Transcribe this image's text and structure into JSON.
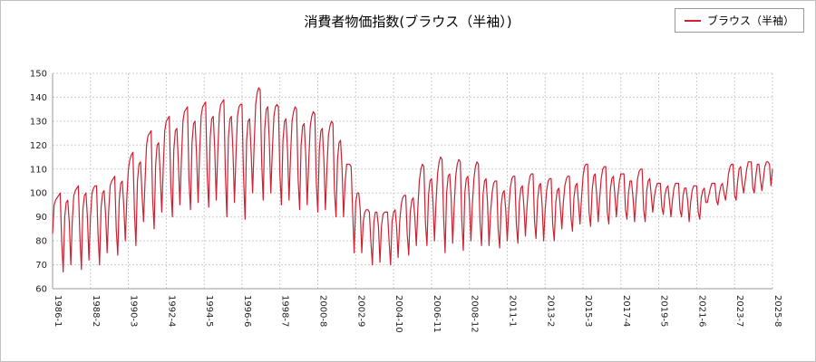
{
  "page": {
    "title": "消費者物価指数(ブラウス（半袖）)",
    "legend": {
      "label": "ブラウス（半袖）",
      "line_color": "#cc2233"
    }
  },
  "chart_data": {
    "type": "line",
    "title": "消費者物価指数(ブラウス（半袖）)",
    "xlabel": "",
    "ylabel": "",
    "ylim": [
      60,
      150
    ],
    "y_ticks": [
      60,
      70,
      80,
      90,
      100,
      110,
      120,
      130,
      140,
      150
    ],
    "grid": true,
    "legend_position": "top-right",
    "x_tick_labels": [
      "1986-1",
      "1988-2",
      "1990-3",
      "1992-4",
      "1994-5",
      "1996-6",
      "1998-7",
      "2000-8",
      "2002-9",
      "2004-10",
      "2006-11",
      "2008-12",
      "2011-1",
      "2013-2",
      "2015-3",
      "2017-4",
      "2019-5",
      "2021-6",
      "2023-7",
      "2025-8"
    ],
    "x_tick_indices": [
      0,
      25,
      50,
      75,
      100,
      125,
      150,
      175,
      200,
      225,
      250,
      275,
      300,
      325,
      350,
      375,
      400,
      425,
      450,
      475
    ],
    "series": [
      {
        "name": "ブラウス（半袖）",
        "color": "#cc2233",
        "frequency": "monthly",
        "start": "1986-1",
        "end": "2025-8",
        "values": [
          83,
          95,
          97,
          98,
          99,
          100,
          80,
          67,
          90,
          96,
          97,
          88,
          70,
          88,
          99,
          101,
          102,
          103,
          82,
          68,
          93,
          99,
          100,
          90,
          72,
          90,
          100,
          102,
          103,
          103,
          83,
          70,
          94,
          100,
          101,
          91,
          75,
          92,
          103,
          105,
          106,
          107,
          85,
          74,
          97,
          104,
          105,
          94,
          80,
          98,
          110,
          114,
          116,
          117,
          92,
          78,
          105,
          112,
          113,
          100,
          88,
          105,
          120,
          124,
          125,
          126,
          98,
          85,
          112,
          120,
          121,
          108,
          92,
          110,
          126,
          130,
          131,
          132,
          103,
          90,
          118,
          126,
          127,
          113,
          95,
          114,
          130,
          134,
          135,
          136,
          106,
          93,
          121,
          129,
          130,
          116,
          96,
          116,
          132,
          136,
          137,
          138,
          108,
          94,
          123,
          131,
          132,
          118,
          97,
          117,
          133,
          137,
          138,
          139,
          108,
          90,
          123,
          131,
          132,
          118,
          96,
          116,
          132,
          136,
          137,
          137,
          107,
          89,
          122,
          130,
          131,
          117,
          100,
          120,
          137,
          142,
          144,
          143,
          112,
          97,
          127,
          135,
          136,
          122,
          100,
          118,
          132,
          136,
          137,
          136,
          108,
          95,
          122,
          130,
          131,
          118,
          97,
          115,
          130,
          134,
          136,
          135,
          106,
          93,
          120,
          128,
          129,
          116,
          95,
          113,
          128,
          132,
          134,
          133,
          104,
          92,
          118,
          126,
          127,
          114,
          93,
          110,
          124,
          128,
          130,
          129,
          101,
          90,
          114,
          121,
          122,
          110,
          90,
          104,
          112,
          112,
          112,
          111,
          92,
          75,
          96,
          100,
          100,
          93,
          75,
          88,
          92,
          93,
          93,
          92,
          80,
          70,
          88,
          92,
          92,
          86,
          71,
          86,
          91,
          92,
          92,
          92,
          80,
          70,
          88,
          92,
          93,
          86,
          73,
          88,
          95,
          98,
          99,
          99,
          83,
          74,
          92,
          97,
          98,
          90,
          78,
          94,
          105,
          110,
          112,
          111,
          88,
          78,
          99,
          105,
          106,
          96,
          80,
          96,
          108,
          113,
          115,
          114,
          90,
          75,
          100,
          107,
          108,
          98,
          79,
          95,
          107,
          112,
          114,
          113,
          89,
          76,
          100,
          106,
          107,
          97,
          80,
          95,
          106,
          111,
          113,
          112,
          88,
          78,
          99,
          105,
          106,
          96,
          78,
          92,
          100,
          104,
          105,
          105,
          85,
          77,
          95,
          100,
          101,
          93,
          80,
          93,
          102,
          106,
          107,
          107,
          87,
          79,
          96,
          102,
          103,
          94,
          82,
          94,
          103,
          107,
          108,
          108,
          88,
          81,
          97,
          103,
          104,
          95,
          80,
          93,
          101,
          105,
          106,
          106,
          87,
          80,
          96,
          101,
          102,
          94,
          85,
          96,
          103,
          106,
          107,
          107,
          90,
          84,
          98,
          103,
          104,
          96,
          87,
          98,
          107,
          111,
          112,
          112,
          92,
          86,
          101,
          107,
          108,
          99,
          88,
          98,
          106,
          110,
          111,
          111,
          92,
          87,
          101,
          106,
          107,
          99,
          90,
          99,
          105,
          108,
          108,
          108,
          93,
          89,
          100,
          105,
          105,
          98,
          88,
          98,
          106,
          109,
          110,
          110,
          93,
          88,
          101,
          105,
          106,
          99,
          92,
          98,
          102,
          104,
          104,
          104,
          94,
          91,
          99,
          102,
          103,
          97,
          90,
          97,
          102,
          104,
          104,
          104,
          93,
          90,
          99,
          102,
          102,
          97,
          88,
          96,
          101,
          103,
          103,
          103,
          92,
          89,
          98,
          101,
          102,
          96,
          96,
          99,
          102,
          104,
          104,
          104,
          97,
          95,
          100,
          103,
          104,
          100,
          97,
          102,
          108,
          111,
          112,
          112,
          99,
          97,
          105,
          110,
          111,
          104,
          100,
          105,
          110,
          113,
          113,
          113,
          102,
          100,
          107,
          112,
          112,
          106,
          101,
          106,
          111,
          113,
          113,
          112,
          103,
          110
        ]
      }
    ]
  }
}
